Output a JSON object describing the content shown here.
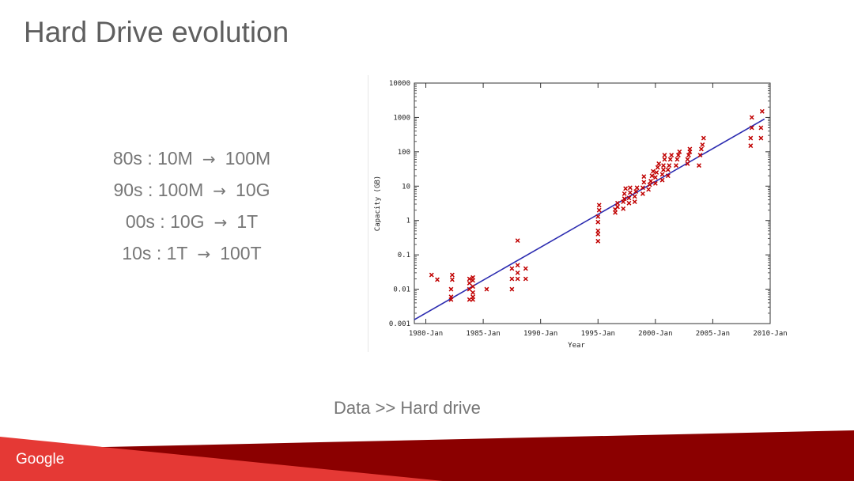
{
  "slide": {
    "title": "Hard Drive evolution",
    "caption": "Data >> Hard drive",
    "logo": "Google"
  },
  "bullets": [
    {
      "decade": "80s : 10M",
      "arrow": "→",
      "target": "100M"
    },
    {
      "decade": "90s : 100M",
      "arrow": "→",
      "target": "10G"
    },
    {
      "decade": "00s : 10G",
      "arrow": "→",
      "target": "1T"
    },
    {
      "decade": "10s : 1T",
      "arrow": "→",
      "target": "100T"
    }
  ],
  "colors": {
    "text_gray": "#777777",
    "title_gray": "#5f5f5f",
    "trend_line": "#2b2bb0",
    "points": "#c00000",
    "footer_red": "#e53935",
    "footer_dark": "#8b0000"
  },
  "chart_data": {
    "type": "scatter",
    "xlabel": "Year",
    "ylabel": "Capacity (GB)",
    "yscale": "log",
    "xlim": [
      1979,
      2010
    ],
    "ylim": [
      0.001,
      10000
    ],
    "xticks": [
      1980,
      1985,
      1990,
      1995,
      2000,
      2005,
      2010
    ],
    "xtick_labels": [
      "1980-Jan",
      "1985-Jan",
      "1990-Jan",
      "1995-Jan",
      "2000-Jan",
      "2005-Jan",
      "2010-Jan"
    ],
    "yticks": [
      0.001,
      0.01,
      0.1,
      1,
      10,
      100,
      1000,
      10000
    ],
    "ytick_labels": [
      "0.001",
      "0.01",
      "0.1",
      "1",
      "10",
      "100",
      "1000",
      "10000"
    ],
    "grid": false,
    "trend_line": {
      "x": [
        1979,
        2009.5
      ],
      "y": [
        0.0013,
        900
      ]
    },
    "points": [
      [
        1980.5,
        0.026
      ],
      [
        1981,
        0.019
      ],
      [
        1982.2,
        0.005
      ],
      [
        1982.2,
        0.01
      ],
      [
        1982.3,
        0.019
      ],
      [
        1982.3,
        0.026
      ],
      [
        1982.2,
        0.006
      ],
      [
        1983.8,
        0.005
      ],
      [
        1983.8,
        0.01
      ],
      [
        1983.8,
        0.015
      ],
      [
        1983.8,
        0.02
      ],
      [
        1984.1,
        0.006
      ],
      [
        1984.1,
        0.008
      ],
      [
        1984.1,
        0.012
      ],
      [
        1984.1,
        0.018
      ],
      [
        1984.1,
        0.022
      ],
      [
        1984.1,
        0.005
      ],
      [
        1985.3,
        0.01
      ],
      [
        1987.5,
        0.01
      ],
      [
        1987.5,
        0.02
      ],
      [
        1987.5,
        0.04
      ],
      [
        1988,
        0.02
      ],
      [
        1988,
        0.03
      ],
      [
        1988,
        0.05
      ],
      [
        1988,
        0.26
      ],
      [
        1988.7,
        0.02
      ],
      [
        1988.7,
        0.04
      ],
      [
        1995,
        0.25
      ],
      [
        1995,
        0.4
      ],
      [
        1995,
        0.5
      ],
      [
        1995,
        0.9
      ],
      [
        1995,
        1.3
      ],
      [
        1995.1,
        2.0
      ],
      [
        1995.1,
        2.8
      ],
      [
        1996.5,
        1.7
      ],
      [
        1996.5,
        2.1
      ],
      [
        1996.7,
        2.5
      ],
      [
        1996.7,
        3.2
      ],
      [
        1997.2,
        2.2
      ],
      [
        1997.2,
        3.5
      ],
      [
        1997.3,
        4.3
      ],
      [
        1997.3,
        6
      ],
      [
        1997.4,
        8.5
      ],
      [
        1997.7,
        3.2
      ],
      [
        1997.7,
        4.5
      ],
      [
        1997.8,
        6.5
      ],
      [
        1997.8,
        9
      ],
      [
        1998.2,
        3.5
      ],
      [
        1998.2,
        5
      ],
      [
        1998.3,
        7
      ],
      [
        1998.4,
        9
      ],
      [
        1998.9,
        6
      ],
      [
        1998.9,
        9
      ],
      [
        1999,
        13
      ],
      [
        1999,
        19
      ],
      [
        1999.4,
        8
      ],
      [
        1999.5,
        11
      ],
      [
        1999.6,
        14
      ],
      [
        1999.7,
        20
      ],
      [
        1999.8,
        27
      ],
      [
        2000,
        12
      ],
      [
        2000,
        18
      ],
      [
        2000.1,
        25
      ],
      [
        2000.2,
        35
      ],
      [
        2000.3,
        45
      ],
      [
        2000.6,
        15
      ],
      [
        2000.6,
        22
      ],
      [
        2000.7,
        30
      ],
      [
        2000.7,
        40
      ],
      [
        2000.8,
        60
      ],
      [
        2000.8,
        80
      ],
      [
        2001.1,
        20
      ],
      [
        2001.1,
        30
      ],
      [
        2001.2,
        40
      ],
      [
        2001.3,
        60
      ],
      [
        2001.4,
        80
      ],
      [
        2001.8,
        40
      ],
      [
        2001.9,
        60
      ],
      [
        2002,
        80
      ],
      [
        2002.1,
        100
      ],
      [
        2002.8,
        45
      ],
      [
        2002.8,
        60
      ],
      [
        2002.9,
        80
      ],
      [
        2003,
        100
      ],
      [
        2003,
        120
      ],
      [
        2003.8,
        40
      ],
      [
        2003.9,
        80
      ],
      [
        2004,
        120
      ],
      [
        2004.1,
        160
      ],
      [
        2004.2,
        250
      ],
      [
        2008.3,
        150
      ],
      [
        2008.3,
        250
      ],
      [
        2008.4,
        500
      ],
      [
        2008.4,
        1000
      ],
      [
        2009.2,
        250
      ],
      [
        2009.2,
        500
      ],
      [
        2009.3,
        1500
      ]
    ]
  }
}
